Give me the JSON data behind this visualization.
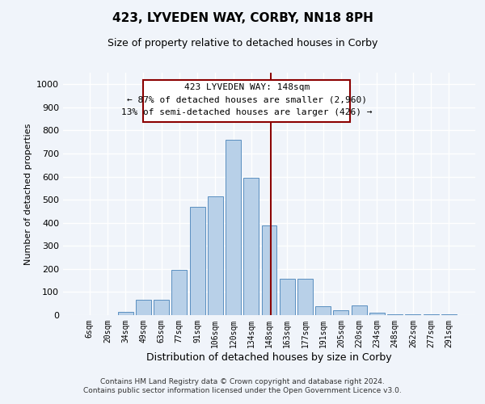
{
  "title": "423, LYVEDEN WAY, CORBY, NN18 8PH",
  "subtitle": "Size of property relative to detached houses in Corby",
  "xlabel": "Distribution of detached houses by size in Corby",
  "ylabel": "Number of detached properties",
  "categories": [
    "6sqm",
    "20sqm",
    "34sqm",
    "49sqm",
    "63sqm",
    "77sqm",
    "91sqm",
    "106sqm",
    "120sqm",
    "134sqm",
    "148sqm",
    "163sqm",
    "177sqm",
    "191sqm",
    "205sqm",
    "220sqm",
    "234sqm",
    "248sqm",
    "262sqm",
    "277sqm",
    "291sqm"
  ],
  "values": [
    0,
    0,
    15,
    65,
    65,
    197,
    470,
    515,
    758,
    595,
    388,
    158,
    158,
    40,
    22,
    43,
    10,
    2,
    2,
    2,
    2
  ],
  "bar_color": "#b8d0e8",
  "bar_edge_color": "#5a8fc0",
  "marker_index": 10,
  "marker_color": "#8b0000",
  "annotation_title": "423 LYVEDEN WAY: 148sqm",
  "annotation_line1": "← 87% of detached houses are smaller (2,960)",
  "annotation_line2": "13% of semi-detached houses are larger (426) →",
  "annotation_box_color": "#8b0000",
  "ylim": [
    0,
    1050
  ],
  "yticks": [
    0,
    100,
    200,
    300,
    400,
    500,
    600,
    700,
    800,
    900,
    1000
  ],
  "footer_line1": "Contains HM Land Registry data © Crown copyright and database right 2024.",
  "footer_line2": "Contains public sector information licensed under the Open Government Licence v3.0.",
  "bg_color": "#f0f4fa",
  "grid_color": "#ffffff"
}
